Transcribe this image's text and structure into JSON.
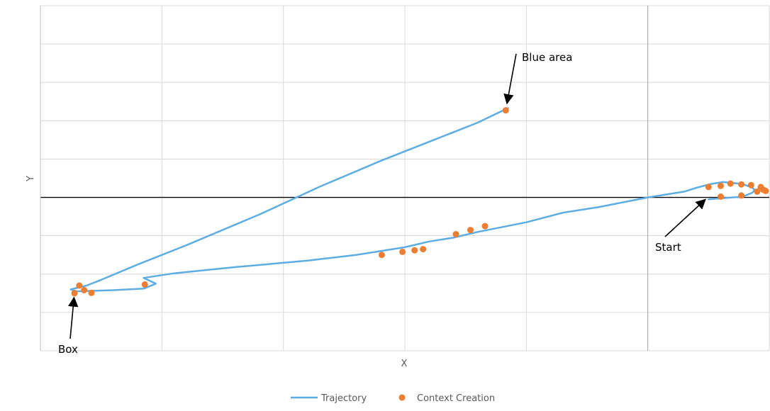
{
  "chart_data": {
    "type": "scatter",
    "title": "",
    "xlabel": "X",
    "ylabel": "Y",
    "xlim": [
      -3,
      3
    ],
    "ylim": [
      -4,
      5
    ],
    "grid": true,
    "legend_position": "bottom",
    "colors": {
      "trajectory": "#5DADE2",
      "context": "#ED7D31",
      "grid": "#D9D9D9",
      "axis": "#000000"
    },
    "series": [
      {
        "name": "Trajectory",
        "kind": "line",
        "points": [
          [
            2.5,
            -0.05
          ],
          [
            2.62,
            -0.02
          ],
          [
            2.78,
            0.02
          ],
          [
            2.86,
            0.12
          ],
          [
            2.88,
            0.2
          ],
          [
            2.86,
            0.25
          ],
          [
            2.78,
            0.35
          ],
          [
            2.62,
            0.4
          ],
          [
            2.52,
            0.35
          ],
          [
            2.4,
            0.25
          ],
          [
            2.3,
            0.15
          ],
          [
            2.0,
            0.0
          ],
          [
            1.6,
            -0.25
          ],
          [
            1.3,
            -0.4
          ],
          [
            1.0,
            -0.65
          ],
          [
            0.6,
            -0.9
          ],
          [
            0.4,
            -1.05
          ],
          [
            0.2,
            -1.15
          ],
          [
            0.0,
            -1.3
          ],
          [
            -0.4,
            -1.5
          ],
          [
            -0.8,
            -1.65
          ],
          [
            -1.4,
            -1.82
          ],
          [
            -1.9,
            -1.98
          ],
          [
            -2.15,
            -2.1
          ],
          [
            -2.05,
            -2.25
          ],
          [
            -2.15,
            -2.38
          ],
          [
            -2.4,
            -2.42
          ],
          [
            -2.7,
            -2.45
          ],
          [
            -2.75,
            -2.4
          ],
          [
            -2.62,
            -2.3
          ],
          [
            -2.5,
            -2.15
          ],
          [
            -2.2,
            -1.75
          ],
          [
            -1.8,
            -1.25
          ],
          [
            -1.2,
            -0.45
          ],
          [
            -0.7,
            0.28
          ],
          [
            -0.2,
            0.95
          ],
          [
            0.2,
            1.45
          ],
          [
            0.6,
            1.95
          ],
          [
            0.85,
            2.33
          ]
        ]
      },
      {
        "name": "Context Creation",
        "kind": "scatter",
        "points": [
          [
            2.5,
            0.27
          ],
          [
            2.6,
            0.3
          ],
          [
            2.68,
            0.36
          ],
          [
            2.77,
            0.34
          ],
          [
            2.85,
            0.32
          ],
          [
            2.93,
            0.27
          ],
          [
            2.95,
            0.2
          ],
          [
            2.97,
            0.17
          ],
          [
            2.9,
            0.15
          ],
          [
            2.77,
            0.05
          ],
          [
            2.6,
            0.02
          ],
          [
            0.66,
            -0.75
          ],
          [
            0.54,
            -0.85
          ],
          [
            0.42,
            -0.96
          ],
          [
            0.15,
            -1.35
          ],
          [
            0.08,
            -1.38
          ],
          [
            -0.02,
            -1.42
          ],
          [
            -0.19,
            -1.5
          ],
          [
            -2.14,
            -2.27
          ],
          [
            -2.58,
            -2.49
          ],
          [
            -2.64,
            -2.42
          ],
          [
            -2.68,
            -2.3
          ],
          [
            -2.72,
            -2.5
          ],
          [
            0.83,
            2.27
          ]
        ]
      }
    ],
    "annotations": [
      {
        "text": "Blue area",
        "target": [
          0.83,
          2.27
        ]
      },
      {
        "text": "Start",
        "target": [
          2.5,
          0.02
        ]
      },
      {
        "text": "Box",
        "target": [
          -2.72,
          -2.5
        ]
      }
    ]
  }
}
